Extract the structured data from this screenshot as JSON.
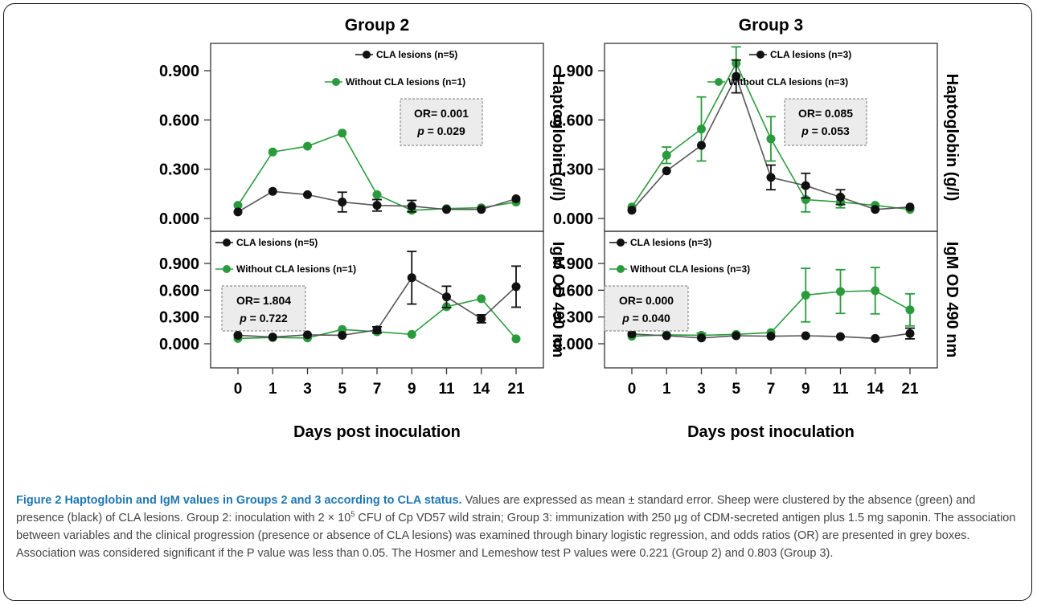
{
  "figure": {
    "group_titles": [
      "Group 2",
      "Group 3"
    ],
    "xlabel": "Days post inoculation",
    "ylabel_top": "Haptoglobin (g/l)",
    "ylabel_bottom": "IgM OD 490 nm",
    "y_ticks": [
      "0.000",
      "0.300",
      "0.600",
      "0.900"
    ],
    "x_ticks": [
      "0",
      "1",
      "3",
      "5",
      "7",
      "9",
      "11",
      "14",
      "21"
    ],
    "colors": {
      "black_series": "#111111",
      "green_series": "#2a9b3c",
      "box_fill": "#ececec",
      "box_border": "#777777"
    }
  },
  "caption": {
    "label": "Figure 2",
    "title": "Haptoglobin and IgM values in Groups 2 and 3 according to CLA status.",
    "part1": "Values are expressed as mean ± standard error. Sheep were clustered by the absence (green) and presence (black) of CLA lesions. Group 2: inoculation with 2 × 10",
    "sup": "5",
    "part2": " CFU of Cp VD57 wild strain; Group 3: immunization with 250 μg of CDM-secreted antigen plus 1.5 mg saponin. The association between variables and the clinical progression (presence or absence of CLA lesions) was examined through binary logistic regression, and odds ratios (OR) are presented in grey boxes. Association was considered significant if the P value was less than 0.05. The Hosmer and Lemeshow test P values were 0.221 (Group 2) and 0.803 (Group 3)."
  },
  "chart_data": [
    {
      "type": "line",
      "panel": "Group 2 – Haptoglobin",
      "title": "Group 2",
      "ylabel": "Haptoglobin (g/l)",
      "xlabel": "",
      "x": [
        "0",
        "1",
        "3",
        "5",
        "7",
        "9",
        "11",
        "14",
        "21"
      ],
      "ylim": [
        0,
        0.9
      ],
      "series": [
        {
          "name": "CLA lesions (n=5)",
          "color": "#111111",
          "values": [
            0.04,
            0.165,
            0.145,
            0.1,
            0.08,
            0.075,
            0.055,
            0.055,
            0.12
          ],
          "errors": [
            0,
            0,
            0,
            0.06,
            0.035,
            0.035,
            0,
            0,
            0
          ]
        },
        {
          "name": "Without CLA lesions (n=1)",
          "color": "#2a9b3c",
          "values": [
            0.08,
            0.405,
            0.44,
            0.52,
            0.145,
            0.05,
            0.06,
            0.065,
            0.1
          ],
          "errors": [
            0,
            0,
            0,
            0,
            0,
            0,
            0,
            0,
            0
          ]
        }
      ],
      "stats": {
        "or": "OR= 0.001",
        "p_label": "p",
        "p_value": " = 0.029"
      }
    },
    {
      "type": "line",
      "panel": "Group 3 – Haptoglobin",
      "title": "Group 3",
      "ylabel": "Haptoglobin (g/l)",
      "xlabel": "",
      "x": [
        "0",
        "1",
        "3",
        "5",
        "7",
        "9",
        "11",
        "14",
        "21"
      ],
      "ylim": [
        0,
        0.9
      ],
      "series": [
        {
          "name": "CLA lesions (n=3)",
          "color": "#111111",
          "values": [
            0.05,
            0.29,
            0.445,
            0.865,
            0.25,
            0.2,
            0.13,
            0.055,
            0.07
          ],
          "errors": [
            0,
            0,
            0,
            0.1,
            0.075,
            0.075,
            0.045,
            0,
            0
          ]
        },
        {
          "name": "Without CLA lesions (n=3)",
          "color": "#2a9b3c",
          "values": [
            0.07,
            0.385,
            0.545,
            0.945,
            0.485,
            0.115,
            0.1,
            0.08,
            0.055
          ],
          "errors": [
            0,
            0.05,
            0.195,
            0.1,
            0.135,
            0.075,
            0.035,
            0,
            0
          ]
        }
      ],
      "stats": {
        "or": "OR= 0.085",
        "p_label": "p",
        "p_value": " = 0.053"
      }
    },
    {
      "type": "line",
      "panel": "Group 2 – IgM",
      "ylabel": "IgM OD 490 nm",
      "xlabel": "Days post inoculation",
      "x": [
        "0",
        "1",
        "3",
        "5",
        "7",
        "9",
        "11",
        "14",
        "21"
      ],
      "ylim": [
        0,
        0.9
      ],
      "series": [
        {
          "name": "CLA lesions (n=5)",
          "color": "#111111",
          "values": [
            0.095,
            0.075,
            0.1,
            0.095,
            0.155,
            0.74,
            0.525,
            0.28,
            0.64
          ],
          "errors": [
            0,
            0,
            0,
            0,
            0.035,
            0.295,
            0.12,
            0.045,
            0.23
          ]
        },
        {
          "name": "Without CLA lesions (n=1)",
          "color": "#2a9b3c",
          "values": [
            0.06,
            0.07,
            0.065,
            0.16,
            0.135,
            0.105,
            0.415,
            0.505,
            0.055
          ],
          "errors": [
            0,
            0,
            0,
            0,
            0,
            0,
            0,
            0,
            0
          ]
        }
      ],
      "stats": {
        "or": "OR= 1.804",
        "p_label": "p",
        "p_value": " = 0.722"
      }
    },
    {
      "type": "line",
      "panel": "Group 3 – IgM",
      "ylabel": "IgM OD 490 nm",
      "xlabel": "Days post inoculation",
      "x": [
        "0",
        "1",
        "3",
        "5",
        "7",
        "9",
        "11",
        "14",
        "21"
      ],
      "ylim": [
        0,
        0.9
      ],
      "series": [
        {
          "name": "CLA lesions (n=3)",
          "color": "#111111",
          "values": [
            0.11,
            0.09,
            0.065,
            0.09,
            0.085,
            0.09,
            0.08,
            0.06,
            0.115
          ],
          "errors": [
            0,
            0,
            0,
            0,
            0,
            0,
            0,
            0,
            0.06
          ]
        },
        {
          "name": "Without CLA lesions (n=3)",
          "color": "#2a9b3c",
          "values": [
            0.085,
            0.1,
            0.095,
            0.105,
            0.125,
            0.545,
            0.585,
            0.595,
            0.38
          ],
          "errors": [
            0,
            0,
            0.025,
            0,
            0,
            0.3,
            0.245,
            0.26,
            0.18
          ]
        }
      ],
      "stats": {
        "or": "OR= 0.000",
        "p_label": "p",
        "p_value": " = 0.040"
      }
    }
  ]
}
